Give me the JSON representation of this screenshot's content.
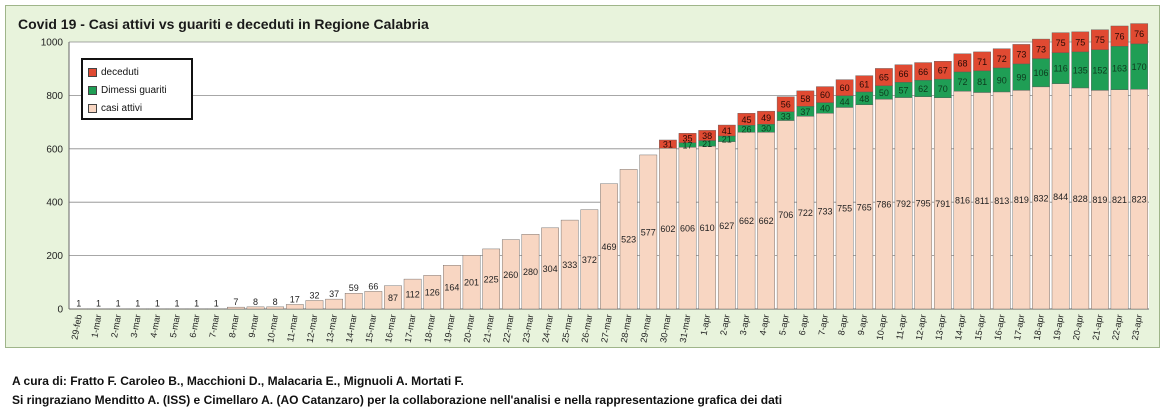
{
  "chart_data": {
    "type": "bar",
    "stacked": true,
    "title": "Covid 19 - Casi attivi vs guariti e deceduti in Regione Calabria",
    "ylim": [
      0,
      1000
    ],
    "yticks": [
      0,
      200,
      400,
      600,
      800,
      1000
    ],
    "grid": true,
    "legend": "top-left",
    "categories": [
      "29-feb",
      "1-mar",
      "2-mar",
      "3-mar",
      "4-mar",
      "5-mar",
      "6-mar",
      "7-mar",
      "8-mar",
      "9-mar",
      "10-mar",
      "11-mar",
      "12-mar",
      "13-mar",
      "14-mar",
      "15-mar",
      "16-mar",
      "17-mar",
      "18-mar",
      "19-mar",
      "20-mar",
      "21-mar",
      "22-mar",
      "23-mar",
      "24-mar",
      "25-mar",
      "26-mar",
      "27-mar",
      "28-mar",
      "29-mar",
      "30-mar",
      "31-mar",
      "1-apr",
      "2-apr",
      "3-apr",
      "4-apr",
      "5-apr",
      "6-apr",
      "7-apr",
      "8-apr",
      "9-apr",
      "10-apr",
      "11-apr",
      "12-apr",
      "13-apr",
      "14-apr",
      "15-apr",
      "16-apr",
      "17-apr",
      "18-apr",
      "19-apr",
      "20-apr",
      "21-apr",
      "22-apr",
      "23-apr"
    ],
    "series": [
      {
        "name": "casi attivi",
        "color": "#f8d6c2",
        "labels": true,
        "values": [
          1,
          1,
          1,
          1,
          1,
          1,
          1,
          1,
          7,
          8,
          8,
          17,
          32,
          37,
          59,
          66,
          87,
          112,
          126,
          164,
          201,
          225,
          260,
          280,
          304,
          333,
          372,
          469,
          523,
          577,
          602,
          606,
          610,
          627,
          662,
          662,
          706,
          722,
          733,
          755,
          765,
          786,
          792,
          795,
          791,
          816,
          811,
          813,
          819,
          832,
          844,
          828,
          819,
          821,
          823
        ]
      },
      {
        "name": "Dimessi guariti",
        "color": "#1f9e55",
        "labels": true,
        "values": [
          0,
          0,
          0,
          0,
          0,
          0,
          0,
          0,
          0,
          0,
          0,
          0,
          0,
          0,
          0,
          0,
          0,
          0,
          0,
          0,
          0,
          0,
          0,
          0,
          0,
          0,
          0,
          0,
          0,
          0,
          0,
          17,
          21,
          21,
          26,
          30,
          33,
          37,
          40,
          44,
          48,
          50,
          57,
          62,
          70,
          72,
          81,
          90,
          99,
          106,
          116,
          135,
          152,
          163,
          170
        ]
      },
      {
        "name": "deceduti",
        "color": "#e04a32",
        "labels": true,
        "values": [
          0,
          0,
          0,
          0,
          0,
          0,
          0,
          0,
          0,
          0,
          0,
          0,
          0,
          0,
          0,
          0,
          0,
          0,
          0,
          0,
          0,
          0,
          0,
          0,
          0,
          0,
          0,
          0,
          0,
          0,
          31,
          35,
          38,
          41,
          45,
          49,
          56,
          58,
          60,
          60,
          61,
          65,
          66,
          66,
          67,
          68,
          71,
          72,
          73,
          73,
          75,
          75,
          75,
          76,
          76
        ]
      }
    ]
  },
  "legend_labels": {
    "deceduti": "deceduti",
    "guariti": "Dimessi guariti",
    "attivi": "casi attivi"
  },
  "credits": {
    "line1": "A cura di: Fratto F. Caroleo B., Macchioni D., Malacaria E., Mignuoli A. Mortati F.",
    "line2": "Si ringraziano Menditto A. (ISS) e Cimellaro A. (AO Catanzaro) per la collaborazione nell'analisi e nella rappresentazione grafica dei dati"
  }
}
